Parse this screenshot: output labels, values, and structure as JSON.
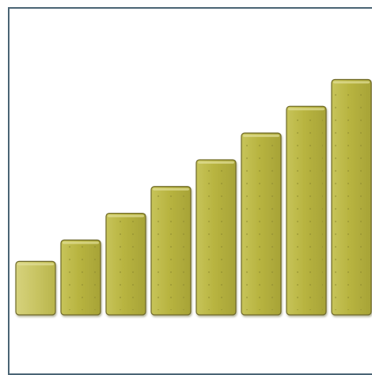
{
  "chart_data": {
    "type": "bar",
    "categories": [
      "",
      "",
      "",
      "",
      "",
      "",
      "",
      ""
    ],
    "values": [
      1.0,
      1.4,
      1.9,
      2.4,
      2.9,
      3.4,
      3.9,
      4.4
    ],
    "title": "",
    "xlabel": "",
    "ylabel": "",
    "ylim": [
      0,
      4.6
    ],
    "grid": false,
    "legend": "none",
    "colors": {
      "bar_fill": "#b5b240",
      "bar_fill_light": "#d1cd72",
      "bar_stroke": "#6f6a2a",
      "frame": "#4a6474",
      "background": "#ffffff"
    }
  }
}
